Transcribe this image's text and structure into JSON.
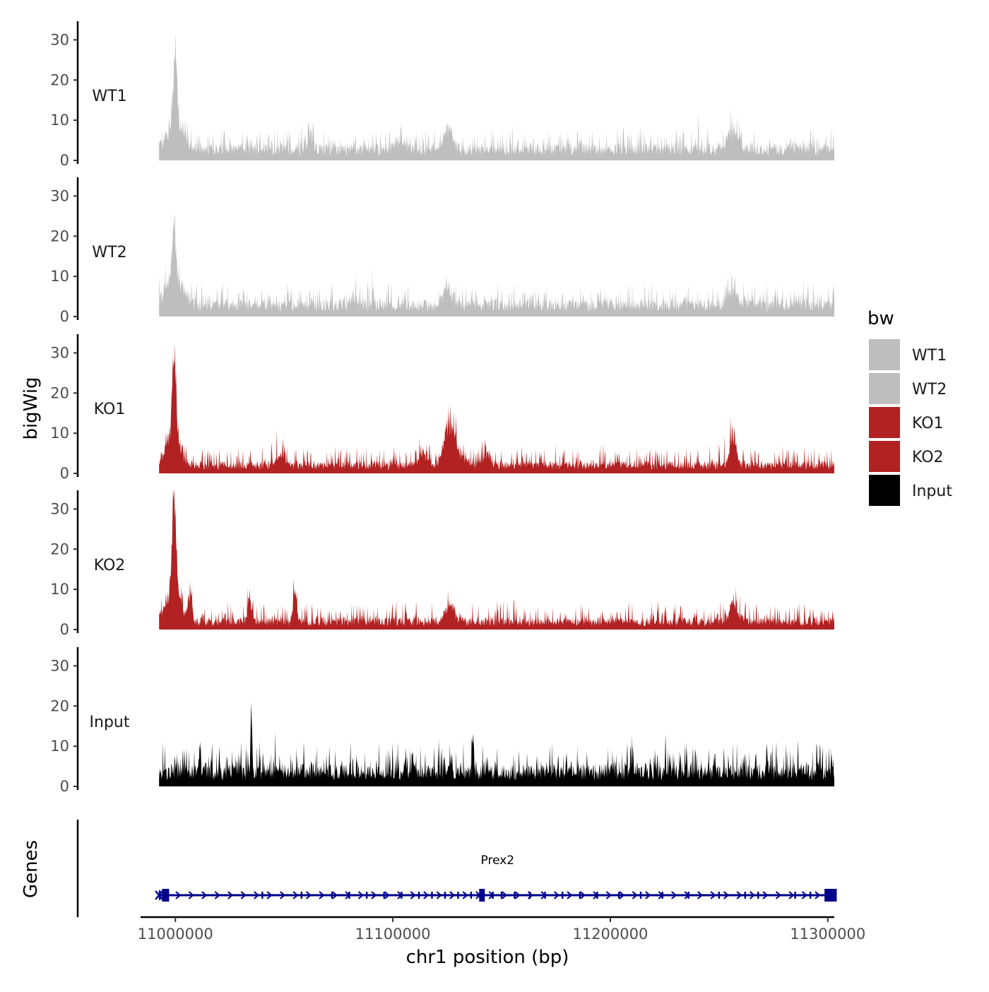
{
  "chart_data": {
    "type": "area",
    "title": "",
    "ylabel": "bigWig",
    "genes_label": "Genes",
    "xlabel": "chr1 position (bp)",
    "xlim": [
      10984000,
      11303000
    ],
    "data_range": [
      10992500,
      11303000
    ],
    "x_ticks": [
      11000000,
      11100000,
      11200000,
      11300000
    ],
    "x_tick_labels": [
      "11000000",
      "11100000",
      "11200000",
      "11300000"
    ],
    "ylim": [
      0,
      35
    ],
    "y_ticks": [
      0,
      10,
      20,
      30
    ],
    "y_tick_labels": [
      "0",
      "10",
      "20",
      "30"
    ],
    "legend": {
      "title": "bw",
      "items": [
        {
          "label": "WT1",
          "color": "#bebebe"
        },
        {
          "label": "WT2",
          "color": "#bebebe"
        },
        {
          "label": "KO1",
          "color": "#b22222"
        },
        {
          "label": "KO2",
          "color": "#b22222"
        },
        {
          "label": "Input",
          "color": "#000000"
        }
      ]
    },
    "series": [
      {
        "name": "WT1",
        "color": "#bebebe",
        "baseline": 3.5,
        "noise": 5,
        "peaks": [
          [
            11000000,
            18,
            1200
          ],
          [
            11000000,
            8,
            5000
          ],
          [
            11125000,
            6,
            3000
          ],
          [
            11256000,
            6,
            3000
          ],
          [
            11103000,
            3,
            3000
          ],
          [
            11062000,
            4,
            2000
          ]
        ]
      },
      {
        "name": "WT2",
        "color": "#bebebe",
        "baseline": 3.5,
        "noise": 5,
        "peaks": [
          [
            10999500,
            15,
            1200
          ],
          [
            10999000,
            8,
            5000
          ],
          [
            11125000,
            5,
            3000
          ],
          [
            11256000,
            5,
            3000
          ],
          [
            11082000,
            3,
            2000
          ]
        ]
      },
      {
        "name": "KO1",
        "color": "#b22222",
        "baseline": 2.5,
        "noise": 4.5,
        "peaks": [
          [
            10999500,
            22,
            1200
          ],
          [
            10999000,
            10,
            4500
          ],
          [
            11126000,
            9,
            3000
          ],
          [
            11256500,
            9,
            2000
          ],
          [
            11128000,
            5,
            5000
          ],
          [
            11049000,
            3,
            3000
          ],
          [
            11114000,
            3,
            3000
          ],
          [
            11143000,
            4,
            2000
          ]
        ]
      },
      {
        "name": "KO2",
        "color": "#b22222",
        "baseline": 2.5,
        "noise": 4.5,
        "peaks": [
          [
            10999500,
            26,
            1200
          ],
          [
            10999000,
            10,
            4500
          ],
          [
            11055000,
            9,
            1200
          ],
          [
            11007000,
            9,
            1000
          ],
          [
            11034000,
            7,
            1000
          ],
          [
            11256500,
            6,
            2500
          ],
          [
            11126000,
            5,
            3000
          ]
        ]
      },
      {
        "name": "Input",
        "color": "#000000",
        "baseline": 4.5,
        "noise": 6.5,
        "peaks": [
          [
            11035000,
            16,
            500
          ],
          [
            11137000,
            8,
            500
          ],
          [
            11272000,
            8,
            500
          ]
        ]
      }
    ],
    "gene": {
      "name": "Prex2",
      "chrom": "chr1",
      "start": 10992500,
      "end": 11302500,
      "strand": "+",
      "color": "#00008b",
      "exons": [
        10992800,
        10995500,
        11040000,
        11058000,
        11072000,
        11080000,
        11088000,
        11096000,
        11104000,
        11112000,
        11118000,
        11124000,
        11130000,
        11136000,
        11140500,
        11146000,
        11150000,
        11156000,
        11163000,
        11170000,
        11178000,
        11186000,
        11194000,
        11204000,
        11214000,
        11224000,
        11236000,
        11250000,
        11262000,
        11268000,
        11285000,
        11292000
      ]
    }
  }
}
